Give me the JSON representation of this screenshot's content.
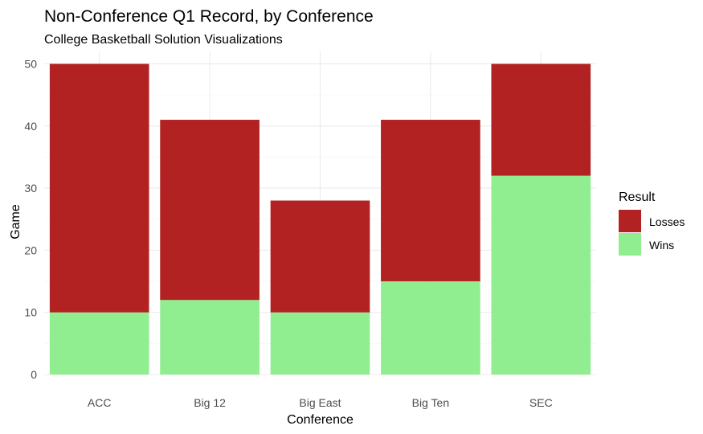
{
  "chart_data": {
    "type": "bar",
    "stacked": true,
    "title": "Non-Conference Q1 Record, by Conference",
    "subtitle": "College Basketball Solution Visualizations",
    "xlabel": "Conference",
    "ylabel": "Game",
    "categories": [
      "ACC",
      "Big 12",
      "Big East",
      "Big Ten",
      "SEC"
    ],
    "series": [
      {
        "name": "Wins",
        "color": "#90ee90",
        "values": [
          10,
          12,
          10,
          15,
          32
        ]
      },
      {
        "name": "Losses",
        "color": "#b22222",
        "values": [
          40,
          29,
          18,
          26,
          18
        ]
      }
    ],
    "ylim": [
      0,
      52
    ],
    "yticks": [
      0,
      10,
      20,
      30,
      40,
      50
    ],
    "grid": true,
    "legend": {
      "title": "Result",
      "position": "right",
      "entries": [
        {
          "label": "Losses",
          "color": "#b22222"
        },
        {
          "label": "Wins",
          "color": "#90ee90"
        }
      ]
    }
  }
}
